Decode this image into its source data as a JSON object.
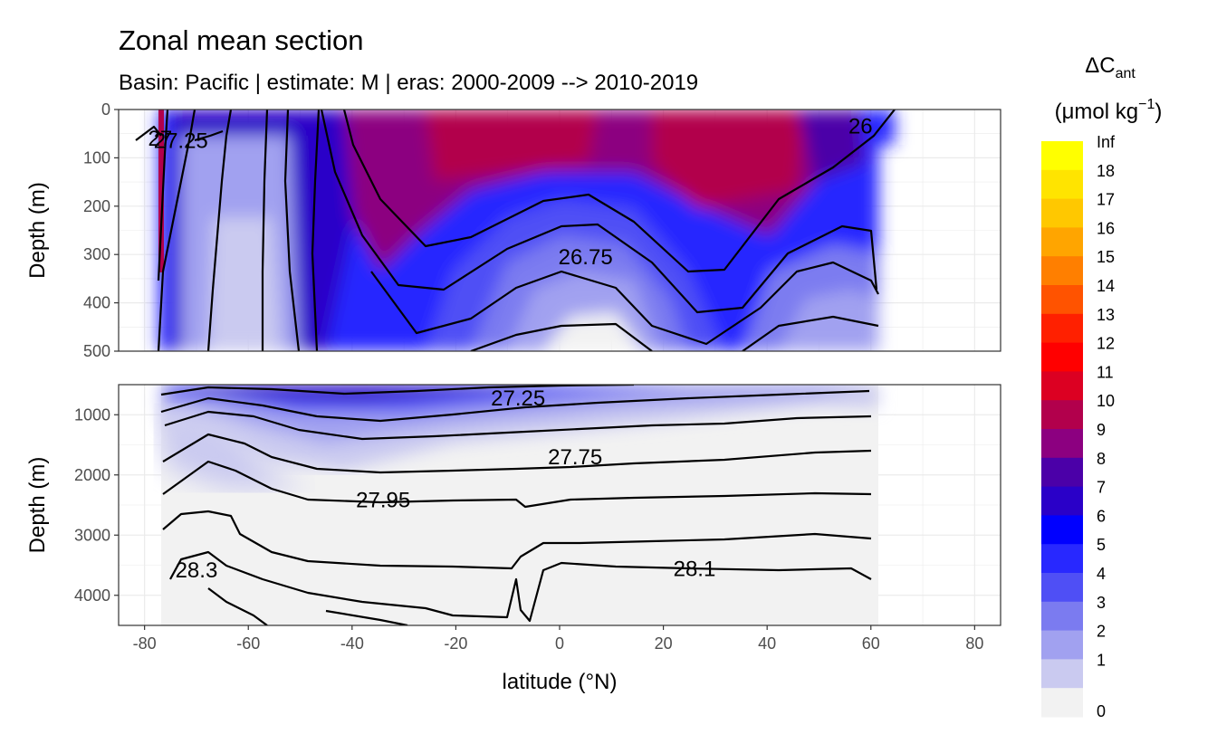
{
  "chart_data": {
    "type": "heatmap",
    "title": "Zonal mean section",
    "subtitle": "Basin: Pacific | estimate: M  | eras: 2000-2009 --> 2010-2019",
    "xlabel": "latitude (°N)",
    "ylabel": "Depth (m)",
    "xlim": [
      -85,
      85
    ],
    "x_ticks": [
      "-80",
      "-60",
      "-40",
      "-20",
      "0",
      "20",
      "40",
      "60",
      "80"
    ],
    "panels": [
      {
        "name": "upper",
        "ylim": [
          0,
          500
        ],
        "y_ticks": [
          "0",
          "100",
          "200",
          "300",
          "400",
          "500"
        ],
        "contour_labels": [
          {
            "text": "27",
            "lat": -77,
            "depth": 60
          },
          {
            "text": "27.25",
            "lat": -73,
            "depth": 65
          },
          {
            "text": "26.75",
            "lat": 5,
            "depth": 305
          },
          {
            "text": "26",
            "lat": 58,
            "depth": 35
          }
        ]
      },
      {
        "name": "lower",
        "ylim": [
          500,
          4500
        ],
        "y_ticks": [
          "1000",
          "2000",
          "3000",
          "4000"
        ],
        "contour_labels": [
          {
            "text": "27.25",
            "lat": -8,
            "depth": 725
          },
          {
            "text": "27.75",
            "lat": 3,
            "depth": 1700
          },
          {
            "text": "27.95",
            "lat": -34,
            "depth": 2420
          },
          {
            "text": "28.3",
            "lat": -70,
            "depth": 3580
          },
          {
            "text": "28.1",
            "lat": 26,
            "depth": 3560
          }
        ]
      }
    ],
    "legend": {
      "title_main": "ΔC",
      "title_sub": "ant",
      "units_main": "(μmol kg",
      "units_sup": "−1",
      "units_end": ")",
      "breaks": [
        "Inf",
        "18",
        "17",
        "16",
        "15",
        "14",
        "13",
        "12",
        "11",
        "10",
        "9",
        "8",
        "7",
        "6",
        "5",
        "4",
        "3",
        "2",
        "1",
        "0"
      ],
      "colors": [
        "#FFFF00",
        "#FFE400",
        "#FFC800",
        "#FFA500",
        "#FF7F00",
        "#FF5300",
        "#FF2000",
        "#FF0000",
        "#DC0022",
        "#B2004C",
        "#8C0080",
        "#4B00A8",
        "#2A00C8",
        "#0000FF",
        "#2828FF",
        "#4F4FF5",
        "#7B7BF0",
        "#A1A1F0",
        "#CACAF0",
        "#F2F2F2"
      ]
    }
  }
}
